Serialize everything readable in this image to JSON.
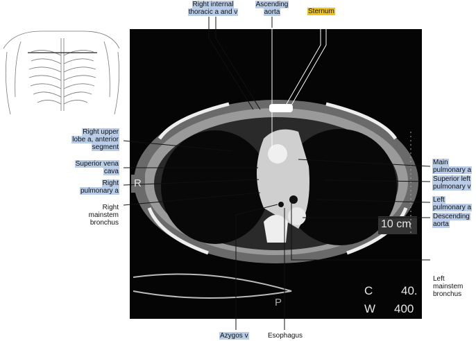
{
  "labels": [
    {
      "lines": [
        "Right internal",
        "thoracic a and v"
      ]
    },
    {
      "lines": [
        "Ascending",
        "aorta"
      ]
    },
    {
      "lines": [
        "Sternum"
      ]
    },
    {
      "lines": [
        "Right upper",
        "lobe a, anterior",
        "segment"
      ]
    },
    {
      "lines": [
        "Superior vena",
        "cava"
      ]
    },
    {
      "lines": [
        "Right",
        "pulmonary a"
      ]
    },
    {
      "lines": [
        "Right",
        "mainstem",
        "bronchus"
      ]
    },
    {
      "lines": [
        "Main",
        "pulmonary a"
      ]
    },
    {
      "lines": [
        "Superior left",
        "pulmonary v"
      ]
    },
    {
      "lines": [
        "Left",
        "pulmonary a"
      ]
    },
    {
      "lines": [
        "Descending",
        "aorta"
      ]
    },
    {
      "lines": [
        "Left",
        "mainstem",
        "bronchus"
      ]
    },
    {
      "lines": [
        "Azygos v"
      ]
    },
    {
      "lines": [
        "Esophagus"
      ]
    }
  ],
  "image_text": {
    "orientation_right": "R",
    "orientation_posterior": "P",
    "scale": "10 cm",
    "center_label": "C",
    "center_value": "40.",
    "width_label": "W",
    "width_value": "400"
  }
}
